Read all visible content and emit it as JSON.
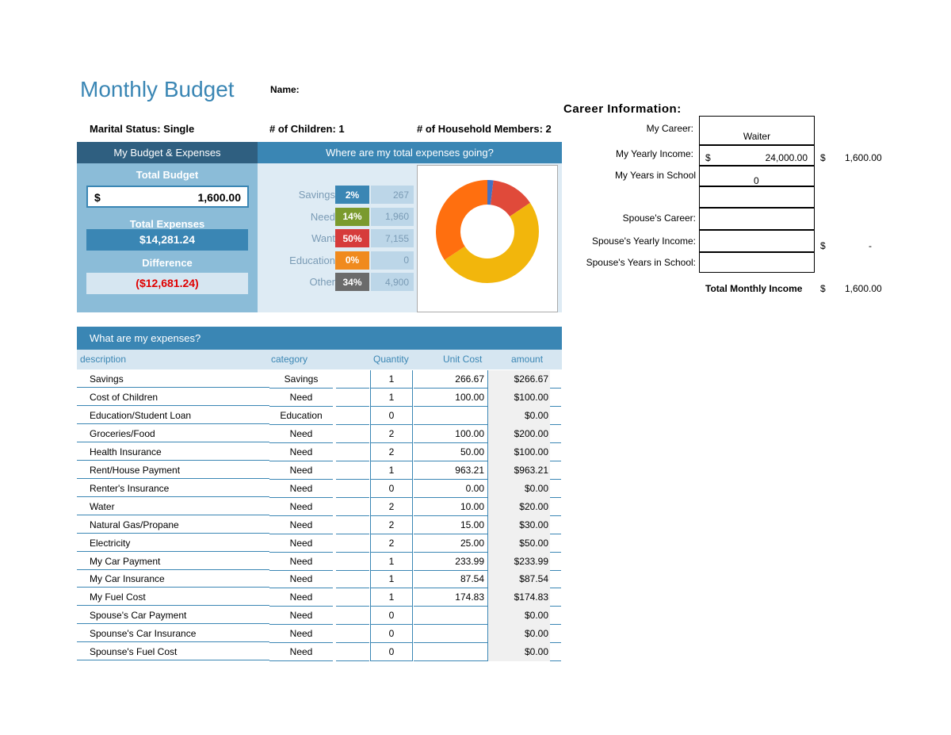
{
  "header": {
    "title": "Monthly Budget",
    "name_label": "Name:",
    "marital_status": "Marital Status:  Single",
    "children": "# of Children: 1",
    "household": "# of Household Members:  2"
  },
  "budget": {
    "panel_title": "My Budget & Expenses",
    "total_budget_label": "Total Budget",
    "currency": "$",
    "total_budget_value": "1,600.00",
    "total_expenses_label": "Total Expenses",
    "total_expenses_value": "$14,281.24",
    "difference_label": "Difference",
    "difference_value": "($12,681.24)"
  },
  "breakdown": {
    "title": "Where are my total expenses going?",
    "rows": [
      {
        "name": "Savings",
        "pct": "2%",
        "amount": "267",
        "color": "#3a86b4"
      },
      {
        "name": "Need",
        "pct": "14%",
        "amount": "1,960",
        "color": "#7a9a2e"
      },
      {
        "name": "Want",
        "pct": "50%",
        "amount": "7,155",
        "color": "#d63b3b"
      },
      {
        "name": "Education",
        "pct": "0%",
        "amount": "0",
        "color": "#f08a1d"
      },
      {
        "name": "Other",
        "pct": "34%",
        "amount": "4,900",
        "color": "#6b6b6b"
      }
    ]
  },
  "chart_data": {
    "type": "pie",
    "donut": true,
    "categories": [
      "Savings",
      "Need",
      "Want",
      "Education",
      "Other"
    ],
    "values": [
      267,
      1960,
      7155,
      0,
      4900
    ],
    "colors": [
      "#4472c4",
      "#e04a3a",
      "#f2b60c",
      "#f08a1d",
      "#ff6f0f"
    ]
  },
  "career": {
    "title": "Career Information:",
    "my_career_label": "My Career:",
    "my_career": "Waiter",
    "my_income_label": "My Yearly Income:",
    "currency": "$",
    "my_income": "24,000.00",
    "my_monthly": "1,600.00",
    "my_school_label": "My Years in School",
    "my_school": "0",
    "spouse_career_label": "Spouse's Career:",
    "spouse_income_label": "Spouse's Yearly Income:",
    "spouse_monthly": "-",
    "spouse_school_label": "Spouse's Years in School:",
    "total_label": "Total Monthly Income",
    "total_value": "1,600.00"
  },
  "expenses": {
    "title": "What are my expenses?",
    "columns": [
      "description",
      "category",
      "Quantity",
      "Unit Cost",
      "amount"
    ],
    "rows": [
      {
        "desc": "Savings",
        "cat": "Savings",
        "qty": "1",
        "unit": "266.67",
        "amount": "$266.67"
      },
      {
        "desc": "Cost of Children",
        "cat": "Need",
        "qty": "1",
        "unit": "100.00",
        "amount": "$100.00"
      },
      {
        "desc": "Education/Student Loan",
        "cat": "Education",
        "qty": "0",
        "unit": "",
        "amount": "$0.00"
      },
      {
        "desc": "Groceries/Food",
        "cat": "Need",
        "qty": "2",
        "unit": "100.00",
        "amount": "$200.00"
      },
      {
        "desc": "Health Insurance",
        "cat": "Need",
        "qty": "2",
        "unit": "50.00",
        "amount": "$100.00"
      },
      {
        "desc": "Rent/House Payment",
        "cat": "Need",
        "qty": "1",
        "unit": "963.21",
        "amount": "$963.21"
      },
      {
        "desc": "Renter's Insurance",
        "cat": "Need",
        "qty": "0",
        "unit": "0.00",
        "amount": "$0.00"
      },
      {
        "desc": "Water",
        "cat": "Need",
        "qty": "2",
        "unit": "10.00",
        "amount": "$20.00"
      },
      {
        "desc": "Natural Gas/Propane",
        "cat": "Need",
        "qty": "2",
        "unit": "15.00",
        "amount": "$30.00"
      },
      {
        "desc": "Electricity",
        "cat": "Need",
        "qty": "2",
        "unit": "25.00",
        "amount": "$50.00"
      },
      {
        "desc": "My Car Payment",
        "cat": "Need",
        "qty": "1",
        "unit": "233.99",
        "amount": "$233.99"
      },
      {
        "desc": "My Car Insurance",
        "cat": "Need",
        "qty": "1",
        "unit": "87.54",
        "amount": "$87.54"
      },
      {
        "desc": "My Fuel Cost",
        "cat": "Need",
        "qty": "1",
        "unit": "174.83",
        "amount": "$174.83"
      },
      {
        "desc": "Spouse's Car Payment",
        "cat": "Need",
        "qty": "0",
        "unit": "",
        "amount": "$0.00"
      },
      {
        "desc": "Spounse's Car Insurance",
        "cat": "Need",
        "qty": "0",
        "unit": "",
        "amount": "$0.00"
      },
      {
        "desc": "Spounse's Fuel Cost",
        "cat": "Need",
        "qty": "0",
        "unit": "",
        "amount": "$0.00"
      }
    ]
  }
}
